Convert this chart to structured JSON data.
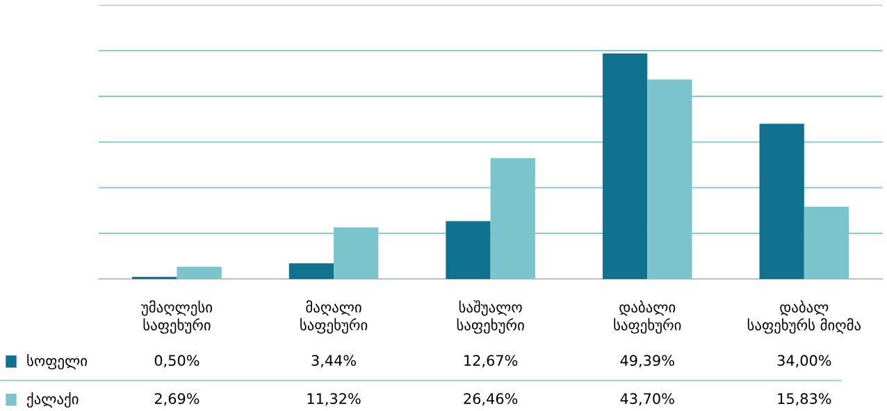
{
  "chart_data": {
    "type": "bar",
    "categories": [
      "უმაღლესი\nსაფეხური",
      "მაღალი\nსაფეხური",
      "საშუალო\nსაფეხური",
      "დაბალი\nსაფეხური",
      "დაბალ\nსაფეხურს მიღმა"
    ],
    "series": [
      {
        "name": "სოფელი",
        "color": "#10728f",
        "values": [
          0.5,
          3.44,
          12.67,
          49.39,
          34.0
        ],
        "value_labels": [
          "0,50%",
          "3,44%",
          "12,67%",
          "49,39%",
          "34,00%"
        ]
      },
      {
        "name": "ქალაქი",
        "color": "#7cc4cb",
        "values": [
          2.69,
          11.32,
          26.46,
          43.7,
          15.83
        ],
        "value_labels": [
          "2,69%",
          "11,32%",
          "26,46%",
          "43,70%",
          "15,83%"
        ]
      }
    ],
    "ylim": [
      0,
      60
    ],
    "yticks": [
      {
        "value": 0,
        "label": null
      },
      {
        "value": 10,
        "label": null
      },
      {
        "value": 20,
        "label": null
      },
      {
        "value": 30,
        "label": null
      },
      {
        "value": 40,
        "label": null
      },
      {
        "value": 50,
        "label": null
      },
      {
        "value": 60,
        "label": null
      }
    ],
    "grid": "y",
    "legend": "bottom left"
  }
}
